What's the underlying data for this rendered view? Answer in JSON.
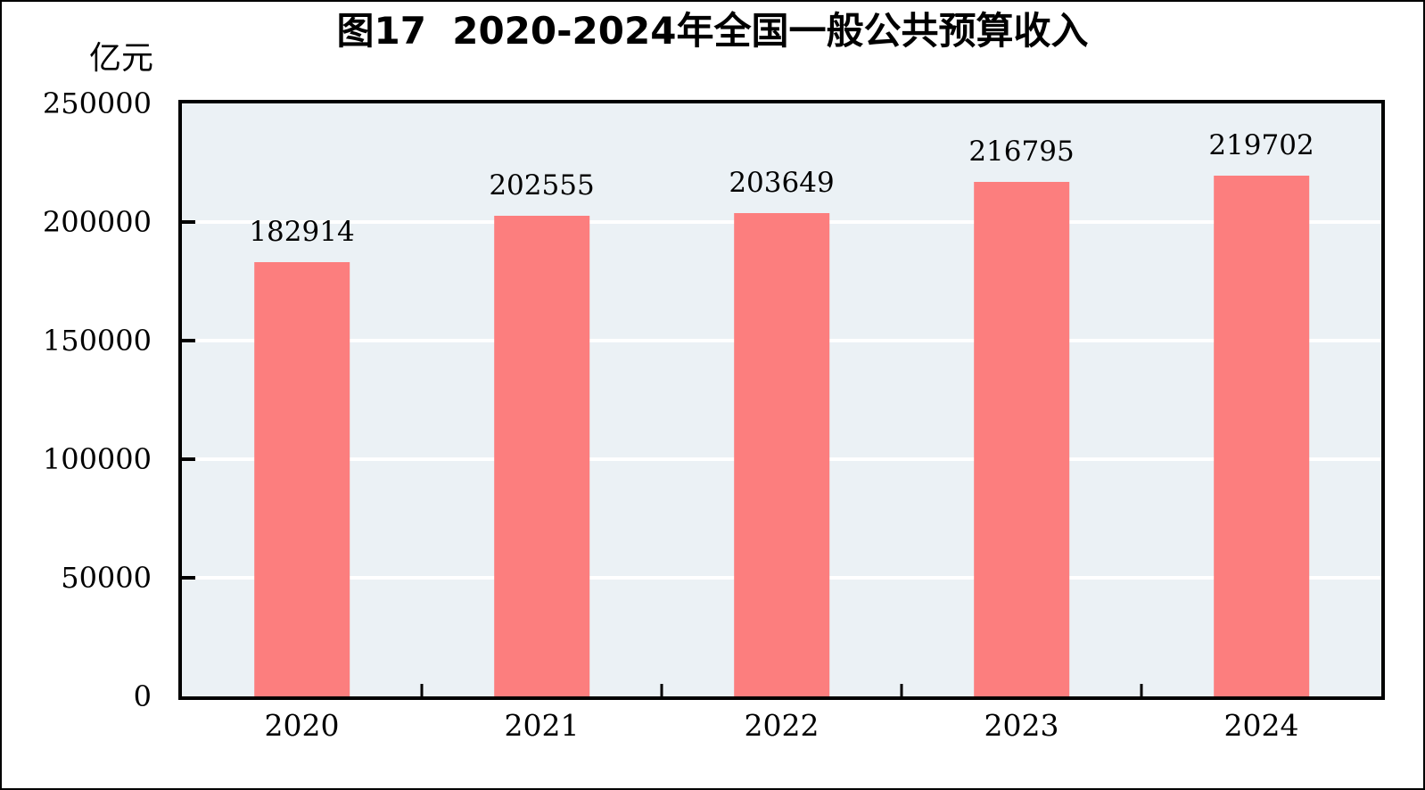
{
  "chart_data": {
    "type": "bar",
    "title": "图17  2020-2024年全国一般公共预算收入",
    "unit_label": "亿元",
    "categories": [
      "2020",
      "2021",
      "2022",
      "2023",
      "2024"
    ],
    "values": [
      182914,
      202555,
      203649,
      216795,
      219702
    ],
    "data_labels": [
      "182914",
      "202555",
      "203649",
      "216795",
      "219702"
    ],
    "xlabel": "",
    "ylabel": "亿元",
    "ylim": [
      0,
      250000
    ],
    "yticks": [
      0,
      50000,
      100000,
      150000,
      200000,
      250000
    ],
    "ytick_labels": [
      "0",
      "50000",
      "100000",
      "150000",
      "200000",
      "250000"
    ],
    "grid": true,
    "legend_position": "none",
    "bar_width_fraction": 0.4,
    "colors": {
      "bar": "#FC7E7E",
      "plot_background": "#EBF1F5",
      "gridline": "#FFFFFF",
      "axis": "#000000",
      "text": "#000000",
      "figure_background": "#FFFFFF",
      "figure_border": "#000000"
    }
  }
}
